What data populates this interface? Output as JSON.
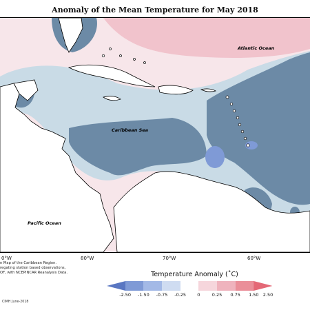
{
  "title": "Anomaly of the Mean Temperature for May 2018",
  "map_labels": {
    "atlantic": "Atlantic Ocean",
    "caribbean": "Caribbean Sea",
    "pacific": "Pacific Ocean"
  },
  "longitudes": [
    "0°W",
    "80°W",
    "70°W",
    "60°W"
  ],
  "credits": [
    "n Map of the Caribbean Region.",
    "regating station based observations,",
    "OF, with NCEPINCAR Reanalysis Data."
  ],
  "footer": "CIMH June-2018",
  "legend": {
    "title": "Temperature Anomaly (˚C)",
    "ticks": [
      "-2.50",
      "-1.50",
      "-0.75",
      "-0.25",
      "0",
      "0.25",
      "0.75",
      "1.50",
      "2.50"
    ],
    "colors": [
      "#5a77c2",
      "#7f9ad6",
      "#a3b9e6",
      "#cfdcf1",
      "#ffffff",
      "#f6d6dc",
      "#efb3bd",
      "#ea8f99",
      "#e46876"
    ]
  },
  "colors": {
    "strong_cool": "#6c8aa6",
    "cool": "#c9dbe6",
    "neutral": "#eef3f6",
    "warm": "#f7e6ea",
    "warmer": "#f1c3cc",
    "blue_cell": "#7f9ad6",
    "land": "#ffffff"
  }
}
